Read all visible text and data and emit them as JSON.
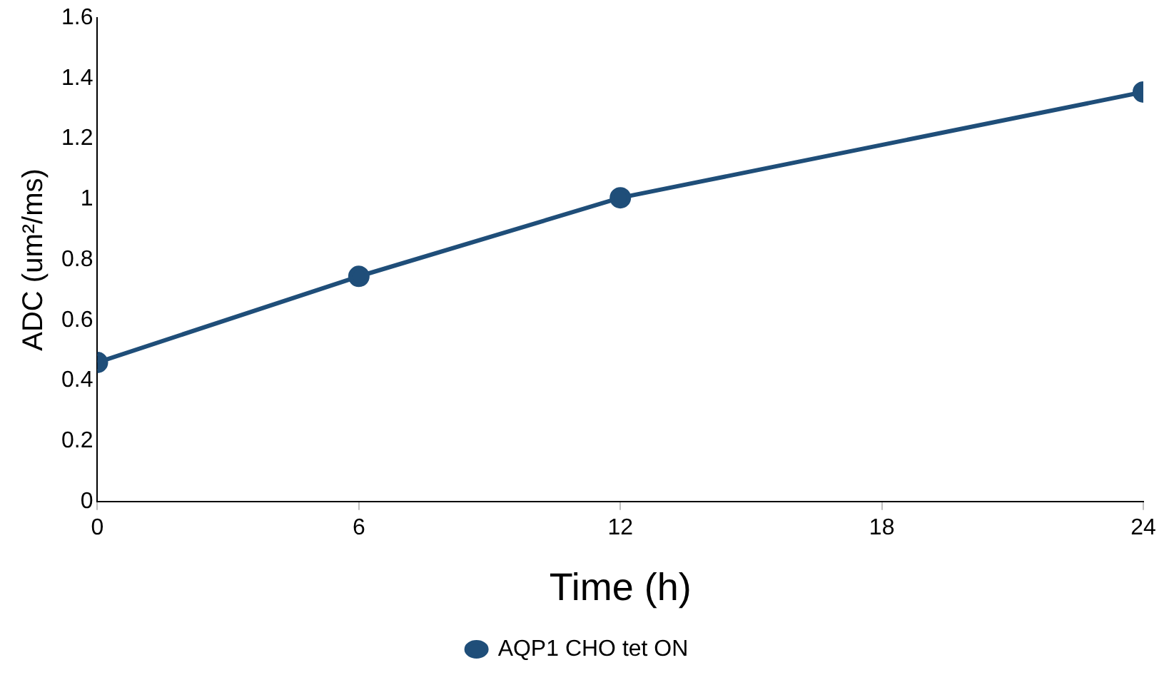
{
  "chart_data": {
    "type": "line",
    "xlabel": "Time (h)",
    "ylabel": "ADC (um²/ms)",
    "x": [
      0,
      6,
      12,
      24
    ],
    "series": [
      {
        "name": "AQP1 CHO tet ON",
        "color": "#1f4e79",
        "values": [
          0.46,
          0.745,
          1.005,
          1.355
        ]
      }
    ],
    "xlim": [
      0,
      24
    ],
    "xticks": [
      0,
      6,
      12,
      18,
      24
    ],
    "ylim": [
      0,
      1.6
    ],
    "yticks": [
      0,
      0.2,
      0.4,
      0.6,
      0.8,
      1,
      1.2,
      1.4,
      1.6
    ],
    "grid": false,
    "legend": "bottom",
    "marker": "circle",
    "line_style": "solid"
  }
}
